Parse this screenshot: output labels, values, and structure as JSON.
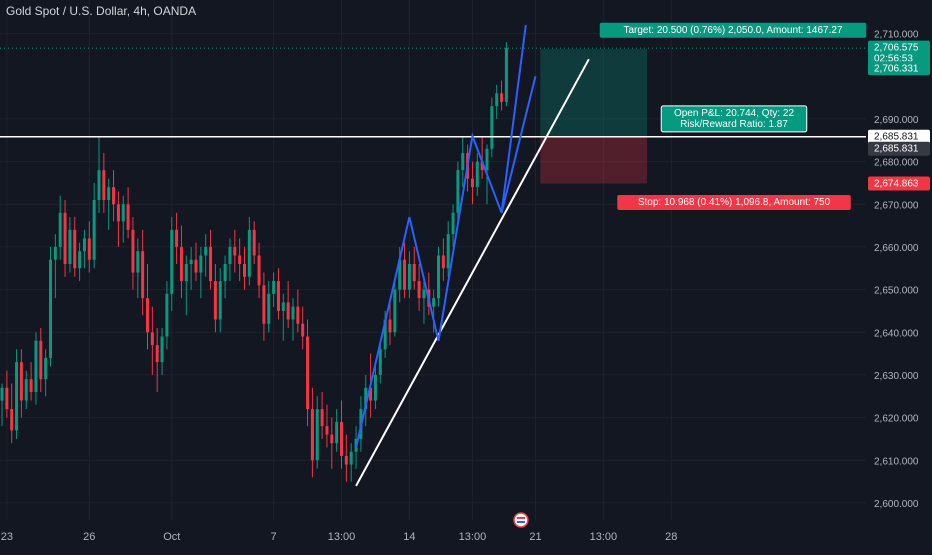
{
  "header": {
    "symbol_title": "Gold Spot / U.S. Dollar, 4h, OANDA"
  },
  "colors": {
    "background": "#131722",
    "grid": "#1e222d",
    "up_candle": "#089981",
    "down_candle": "#f23645",
    "text": "#d1d4dc",
    "axis_text": "#b2b5be",
    "trendline": "#ffffff",
    "pattern_line": "#2962ff",
    "profit_zone": "rgba(8,153,129,0.28)",
    "loss_zone": "rgba(242,54,69,0.28)",
    "target_label": "#089981",
    "stop_label": "#f23645",
    "hline_label": "#ffffff",
    "price_badge_green": "#089981",
    "price_badge_red": "#f23645"
  },
  "chart_data": {
    "type": "candlestick",
    "title": "Gold Spot / U.S. Dollar, 4h, OANDA",
    "xlabel": "",
    "ylabel": "",
    "ylim": [
      2596,
      2716
    ],
    "grid": true,
    "y_ticks": [
      2600,
      2610,
      2620,
      2630,
      2640,
      2650,
      2660,
      2670,
      2680,
      2690,
      2710
    ],
    "y_tick_labels": [
      "2,600.000",
      "2,610.000",
      "2,620.000",
      "2,630.000",
      "2,640.000",
      "2,650.000",
      "2,660.000",
      "2,670.000",
      "2,680.000",
      "2,690.000",
      "2,710.000"
    ],
    "x_tick_labels": [
      {
        "label": "23",
        "bar": 1
      },
      {
        "label": "26",
        "bar": 18
      },
      {
        "label": "Oct",
        "bar": 35
      },
      {
        "label": "7",
        "bar": 56
      },
      {
        "label": "13:00",
        "bar": 70
      },
      {
        "label": "14",
        "bar": 84
      },
      {
        "label": "13:00",
        "bar": 97
      },
      {
        "label": "21",
        "bar": 110
      },
      {
        "label": "13:00",
        "bar": 124
      },
      {
        "label": "28",
        "bar": 138
      }
    ],
    "candles": [
      {
        "o": 2624,
        "h": 2628,
        "l": 2618,
        "c": 2627
      },
      {
        "o": 2627,
        "h": 2631,
        "l": 2620,
        "c": 2622
      },
      {
        "o": 2622,
        "h": 2628,
        "l": 2614,
        "c": 2617
      },
      {
        "o": 2617,
        "h": 2636,
        "l": 2615,
        "c": 2633
      },
      {
        "o": 2633,
        "h": 2636,
        "l": 2620,
        "c": 2624
      },
      {
        "o": 2624,
        "h": 2631,
        "l": 2622,
        "c": 2629
      },
      {
        "o": 2629,
        "h": 2633,
        "l": 2624,
        "c": 2626
      },
      {
        "o": 2626,
        "h": 2640,
        "l": 2623,
        "c": 2638
      },
      {
        "o": 2638,
        "h": 2641,
        "l": 2626,
        "c": 2629
      },
      {
        "o": 2629,
        "h": 2636,
        "l": 2625,
        "c": 2634
      },
      {
        "o": 2634,
        "h": 2660,
        "l": 2632,
        "c": 2657
      },
      {
        "o": 2657,
        "h": 2663,
        "l": 2648,
        "c": 2660
      },
      {
        "o": 2660,
        "h": 2672,
        "l": 2657,
        "c": 2668
      },
      {
        "o": 2668,
        "h": 2671,
        "l": 2653,
        "c": 2656
      },
      {
        "o": 2656,
        "h": 2667,
        "l": 2654,
        "c": 2664
      },
      {
        "o": 2664,
        "h": 2667,
        "l": 2653,
        "c": 2655
      },
      {
        "o": 2655,
        "h": 2661,
        "l": 2652,
        "c": 2659
      },
      {
        "o": 2659,
        "h": 2664,
        "l": 2655,
        "c": 2662
      },
      {
        "o": 2662,
        "h": 2666,
        "l": 2654,
        "c": 2657
      },
      {
        "o": 2657,
        "h": 2675,
        "l": 2655,
        "c": 2671
      },
      {
        "o": 2671,
        "h": 2686,
        "l": 2668,
        "c": 2678
      },
      {
        "o": 2678,
        "h": 2682,
        "l": 2668,
        "c": 2671
      },
      {
        "o": 2671,
        "h": 2676,
        "l": 2664,
        "c": 2674
      },
      {
        "o": 2674,
        "h": 2678,
        "l": 2666,
        "c": 2670
      },
      {
        "o": 2670,
        "h": 2673,
        "l": 2660,
        "c": 2666
      },
      {
        "o": 2666,
        "h": 2672,
        "l": 2661,
        "c": 2670
      },
      {
        "o": 2670,
        "h": 2674,
        "l": 2662,
        "c": 2664
      },
      {
        "o": 2664,
        "h": 2667,
        "l": 2650,
        "c": 2654
      },
      {
        "o": 2654,
        "h": 2662,
        "l": 2648,
        "c": 2659
      },
      {
        "o": 2659,
        "h": 2664,
        "l": 2644,
        "c": 2648
      },
      {
        "o": 2648,
        "h": 2656,
        "l": 2636,
        "c": 2640
      },
      {
        "o": 2640,
        "h": 2646,
        "l": 2630,
        "c": 2637
      },
      {
        "o": 2637,
        "h": 2641,
        "l": 2626,
        "c": 2633
      },
      {
        "o": 2633,
        "h": 2641,
        "l": 2630,
        "c": 2639
      },
      {
        "o": 2639,
        "h": 2652,
        "l": 2636,
        "c": 2649
      },
      {
        "o": 2649,
        "h": 2667,
        "l": 2645,
        "c": 2664
      },
      {
        "o": 2664,
        "h": 2668,
        "l": 2656,
        "c": 2660
      },
      {
        "o": 2660,
        "h": 2665,
        "l": 2648,
        "c": 2652
      },
      {
        "o": 2652,
        "h": 2658,
        "l": 2644,
        "c": 2656
      },
      {
        "o": 2656,
        "h": 2660,
        "l": 2650,
        "c": 2657
      },
      {
        "o": 2657,
        "h": 2661,
        "l": 2652,
        "c": 2654
      },
      {
        "o": 2654,
        "h": 2660,
        "l": 2648,
        "c": 2658
      },
      {
        "o": 2658,
        "h": 2663,
        "l": 2653,
        "c": 2660
      },
      {
        "o": 2660,
        "h": 2664,
        "l": 2650,
        "c": 2652
      },
      {
        "o": 2652,
        "h": 2656,
        "l": 2640,
        "c": 2643
      },
      {
        "o": 2643,
        "h": 2655,
        "l": 2640,
        "c": 2652
      },
      {
        "o": 2652,
        "h": 2658,
        "l": 2648,
        "c": 2656
      },
      {
        "o": 2656,
        "h": 2662,
        "l": 2652,
        "c": 2660
      },
      {
        "o": 2660,
        "h": 2664,
        "l": 2654,
        "c": 2658
      },
      {
        "o": 2658,
        "h": 2662,
        "l": 2652,
        "c": 2656
      },
      {
        "o": 2656,
        "h": 2660,
        "l": 2650,
        "c": 2653
      },
      {
        "o": 2653,
        "h": 2667,
        "l": 2651,
        "c": 2664
      },
      {
        "o": 2664,
        "h": 2666,
        "l": 2656,
        "c": 2658
      },
      {
        "o": 2658,
        "h": 2661,
        "l": 2648,
        "c": 2651
      },
      {
        "o": 2651,
        "h": 2654,
        "l": 2638,
        "c": 2642
      },
      {
        "o": 2642,
        "h": 2652,
        "l": 2640,
        "c": 2649
      },
      {
        "o": 2649,
        "h": 2654,
        "l": 2646,
        "c": 2652
      },
      {
        "o": 2652,
        "h": 2655,
        "l": 2643,
        "c": 2645
      },
      {
        "o": 2645,
        "h": 2649,
        "l": 2638,
        "c": 2647
      },
      {
        "o": 2647,
        "h": 2652,
        "l": 2641,
        "c": 2643
      },
      {
        "o": 2643,
        "h": 2648,
        "l": 2638,
        "c": 2646
      },
      {
        "o": 2646,
        "h": 2650,
        "l": 2640,
        "c": 2642
      },
      {
        "o": 2642,
        "h": 2646,
        "l": 2636,
        "c": 2639
      },
      {
        "o": 2639,
        "h": 2643,
        "l": 2618,
        "c": 2622
      },
      {
        "o": 2622,
        "h": 2627,
        "l": 2606,
        "c": 2610
      },
      {
        "o": 2610,
        "h": 2625,
        "l": 2608,
        "c": 2622
      },
      {
        "o": 2622,
        "h": 2626,
        "l": 2615,
        "c": 2618
      },
      {
        "o": 2618,
        "h": 2623,
        "l": 2613,
        "c": 2616
      },
      {
        "o": 2616,
        "h": 2620,
        "l": 2608,
        "c": 2614
      },
      {
        "o": 2614,
        "h": 2622,
        "l": 2612,
        "c": 2619
      },
      {
        "o": 2619,
        "h": 2624,
        "l": 2608,
        "c": 2611
      },
      {
        "o": 2611,
        "h": 2616,
        "l": 2605,
        "c": 2609
      },
      {
        "o": 2609,
        "h": 2614,
        "l": 2605,
        "c": 2612
      },
      {
        "o": 2612,
        "h": 2618,
        "l": 2608,
        "c": 2615
      },
      {
        "o": 2615,
        "h": 2625,
        "l": 2612,
        "c": 2622
      },
      {
        "o": 2622,
        "h": 2630,
        "l": 2618,
        "c": 2627
      },
      {
        "o": 2627,
        "h": 2635,
        "l": 2620,
        "c": 2624
      },
      {
        "o": 2624,
        "h": 2633,
        "l": 2622,
        "c": 2630
      },
      {
        "o": 2630,
        "h": 2638,
        "l": 2628,
        "c": 2636
      },
      {
        "o": 2636,
        "h": 2645,
        "l": 2634,
        "c": 2643
      },
      {
        "o": 2643,
        "h": 2648,
        "l": 2637,
        "c": 2640
      },
      {
        "o": 2640,
        "h": 2652,
        "l": 2639,
        "c": 2650
      },
      {
        "o": 2650,
        "h": 2660,
        "l": 2647,
        "c": 2657
      },
      {
        "o": 2657,
        "h": 2661,
        "l": 2648,
        "c": 2650
      },
      {
        "o": 2650,
        "h": 2659,
        "l": 2648,
        "c": 2656
      },
      {
        "o": 2656,
        "h": 2660,
        "l": 2650,
        "c": 2652
      },
      {
        "o": 2652,
        "h": 2656,
        "l": 2645,
        "c": 2648
      },
      {
        "o": 2648,
        "h": 2653,
        "l": 2642,
        "c": 2650
      },
      {
        "o": 2650,
        "h": 2654,
        "l": 2644,
        "c": 2646
      },
      {
        "o": 2646,
        "h": 2650,
        "l": 2640,
        "c": 2648
      },
      {
        "o": 2648,
        "h": 2660,
        "l": 2646,
        "c": 2658
      },
      {
        "o": 2658,
        "h": 2662,
        "l": 2652,
        "c": 2655
      },
      {
        "o": 2655,
        "h": 2666,
        "l": 2653,
        "c": 2663
      },
      {
        "o": 2663,
        "h": 2670,
        "l": 2660,
        "c": 2668
      },
      {
        "o": 2668,
        "h": 2680,
        "l": 2665,
        "c": 2678
      },
      {
        "o": 2678,
        "h": 2686,
        "l": 2674,
        "c": 2682
      },
      {
        "o": 2682,
        "h": 2684,
        "l": 2673,
        "c": 2676
      },
      {
        "o": 2676,
        "h": 2680,
        "l": 2670,
        "c": 2674
      },
      {
        "o": 2674,
        "h": 2682,
        "l": 2672,
        "c": 2680
      },
      {
        "o": 2680,
        "h": 2686,
        "l": 2676,
        "c": 2678
      },
      {
        "o": 2678,
        "h": 2684,
        "l": 2670,
        "c": 2683
      },
      {
        "o": 2683,
        "h": 2695,
        "l": 2681,
        "c": 2693
      },
      {
        "o": 2693,
        "h": 2698,
        "l": 2690,
        "c": 2696
      },
      {
        "o": 2696,
        "h": 2699,
        "l": 2692,
        "c": 2694
      },
      {
        "o": 2694,
        "h": 2708,
        "l": 2693,
        "c": 2706.6
      }
    ],
    "horizontal_line": {
      "price": 2685.831
    },
    "position": {
      "entry": 2685.831,
      "target": 2706.331,
      "stop": 2674.863,
      "start_bar": 111,
      "end_bar": 133
    },
    "trendlines": [
      {
        "from": {
          "bar": 73,
          "price": 2604
        },
        "to": {
          "bar": 121,
          "price": 2704
        }
      }
    ],
    "pattern": [
      {
        "bar": 73,
        "price": 2613
      },
      {
        "bar": 84,
        "price": 2667
      },
      {
        "bar": 90,
        "price": 2638
      },
      {
        "bar": 97,
        "price": 2686
      },
      {
        "bar": 103,
        "price": 2668
      },
      {
        "bar": 108,
        "price": 2712
      }
    ],
    "pattern_extension": [
      {
        "bar": 103,
        "price": 2668
      },
      {
        "bar": 110,
        "price": 2700
      }
    ]
  },
  "labels": {
    "target": "Target: 20.500 (0.76%) 2,050.0, Amount: 1467.27",
    "pnl_line1": "Open P&L: 20.744, Qty: 22",
    "pnl_line2": "Risk/Reward Ratio: 1.87",
    "stop": "Stop: 10.968 (0.41%) 1,096.8, Amount: 750"
  },
  "price_badges": {
    "last_price": "2,706.575",
    "countdown": "02:56:53",
    "target_price": "2,706.331",
    "hline_price": "2,685.831",
    "entry_price": "2,685.831",
    "stop_price": "2,674.863"
  }
}
